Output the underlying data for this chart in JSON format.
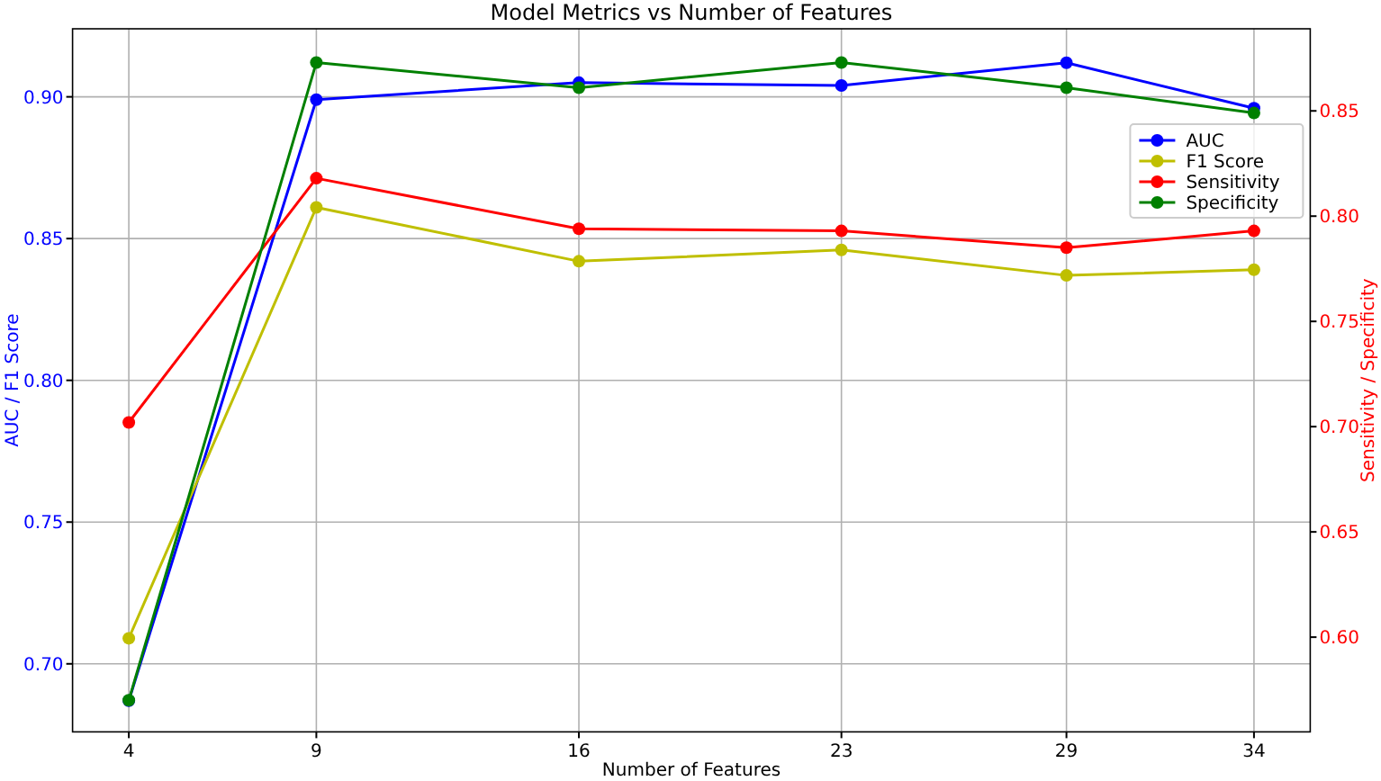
{
  "chart_data": {
    "type": "line",
    "title": "Model Metrics vs Number of Features",
    "xlabel": "Number of Features",
    "ylabel": "AUC / F1 Score",
    "y2label": "Sensitivity / Specificity",
    "x": [
      4,
      9,
      16,
      23,
      29,
      34
    ],
    "xlim": [
      2.5,
      35.5
    ],
    "xticks": [
      4,
      9,
      16,
      23,
      29,
      34
    ],
    "ylim": [
      0.676,
      0.924
    ],
    "yticks": [
      {
        "value": 0.7,
        "label": "0.70"
      },
      {
        "value": 0.75,
        "label": "0.75"
      },
      {
        "value": 0.8,
        "label": "0.80"
      },
      {
        "value": 0.85,
        "label": "0.85"
      },
      {
        "value": 0.9,
        "label": "0.90"
      }
    ],
    "y2lim": [
      0.555,
      0.889
    ],
    "y2ticks": [
      {
        "value": 0.6,
        "label": "0.60"
      },
      {
        "value": 0.65,
        "label": "0.65"
      },
      {
        "value": 0.7,
        "label": "0.70"
      },
      {
        "value": 0.75,
        "label": "0.75"
      },
      {
        "value": 0.8,
        "label": "0.80"
      },
      {
        "value": 0.85,
        "label": "0.85"
      }
    ],
    "series": [
      {
        "name": "AUC",
        "color": "#0000ff",
        "values": [
          0.687,
          0.899,
          0.905,
          0.904,
          0.912,
          0.896
        ]
      },
      {
        "name": "F1 Score",
        "color": "#bfbf00",
        "values": [
          0.709,
          0.861,
          0.842,
          0.846,
          0.837,
          0.839
        ]
      },
      {
        "name": "Sensitivity",
        "color": "#ff0000",
        "axis": "y2",
        "values": [
          0.702,
          0.818,
          0.794,
          0.793,
          0.785,
          0.793
        ]
      },
      {
        "name": "Specificity",
        "color": "#008000",
        "axis": "y2",
        "values": [
          0.57,
          0.873,
          0.861,
          0.873,
          0.861,
          0.849
        ]
      }
    ],
    "grid": true,
    "legend": "top right",
    "marker": "circle",
    "line_style": "solid"
  }
}
